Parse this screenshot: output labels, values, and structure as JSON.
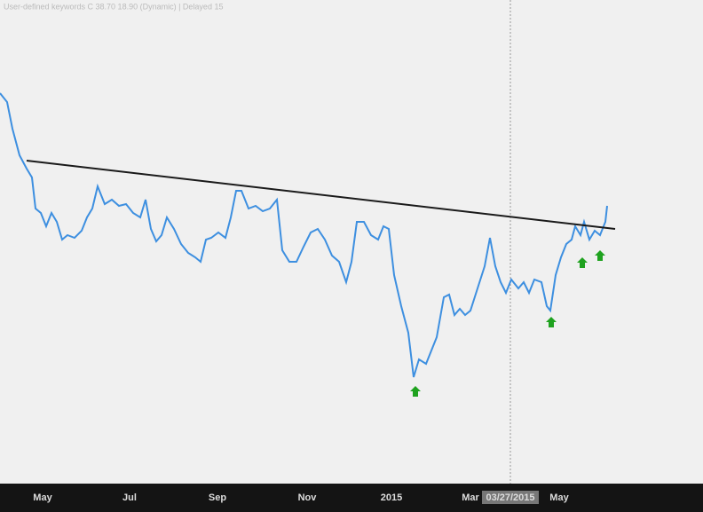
{
  "header": {
    "text": "User-defined keywords C 38.70 18.90 (Dynamic) | Delayed 15"
  },
  "chart_data": {
    "type": "line",
    "x": [
      0,
      8,
      14,
      22,
      30,
      36,
      40,
      46,
      52,
      58,
      64,
      70,
      76,
      84,
      92,
      98,
      104,
      110,
      118,
      126,
      134,
      142,
      150,
      158,
      164,
      170,
      176,
      182,
      188,
      196,
      204,
      212,
      220,
      226,
      232,
      238,
      246,
      254,
      260,
      266,
      272,
      280,
      288,
      296,
      304,
      312,
      318,
      326,
      334,
      342,
      350,
      358,
      366,
      374,
      382,
      390,
      396,
      402,
      410,
      418,
      426,
      432,
      438,
      444,
      452,
      460,
      466,
      472,
      480,
      486,
      492,
      500,
      506,
      512,
      518,
      524,
      530,
      538,
      546,
      552,
      558,
      564,
      570,
      576,
      584,
      590,
      596,
      602,
      610,
      616,
      620,
      626,
      632,
      638,
      644,
      648,
      654,
      658,
      664,
      670,
      676,
      682,
      684
    ],
    "series": [
      {
        "color": "#3d8fe0",
        "values": [
          440,
          430,
          400,
          370,
          355,
          345,
          310,
          305,
          290,
          305,
          295,
          275,
          280,
          277,
          285,
          300,
          310,
          335,
          315,
          320,
          313,
          315,
          305,
          300,
          320,
          287,
          273,
          280,
          300,
          287,
          270,
          260,
          255,
          250,
          275,
          277,
          283,
          277,
          300,
          330,
          330,
          310,
          313,
          307,
          310,
          320,
          263,
          250,
          250,
          267,
          283,
          287,
          275,
          257,
          250,
          227,
          250,
          295,
          295,
          280,
          275,
          290,
          287,
          235,
          200,
          170,
          120,
          140,
          135,
          150,
          165,
          210,
          213,
          190,
          197,
          190,
          195,
          220,
          245,
          277,
          245,
          227,
          215,
          230,
          220,
          227,
          215,
          230,
          227,
          200,
          195,
          235,
          255,
          270,
          275,
          290,
          280,
          295,
          275,
          285,
          280,
          295,
          313
        ]
      }
    ],
    "trendline": {
      "color": "#1a1a1a",
      "x": [
        30,
        693
      ],
      "values": [
        364,
        287
      ]
    },
    "xlim": [
      0,
      792
    ],
    "ylim": [
      0,
      545
    ],
    "xticks": [
      {
        "value": 48,
        "label": "May"
      },
      {
        "value": 146,
        "label": "Jul"
      },
      {
        "value": 245,
        "label": "Sep"
      },
      {
        "value": 346,
        "label": "Nov"
      },
      {
        "value": 441,
        "label": "2015"
      },
      {
        "value": 530,
        "label": "Mar"
      },
      {
        "value": 575,
        "label": "03/27/2015"
      },
      {
        "value": 630,
        "label": "May"
      }
    ],
    "crosshair_tick": 6
  }
}
